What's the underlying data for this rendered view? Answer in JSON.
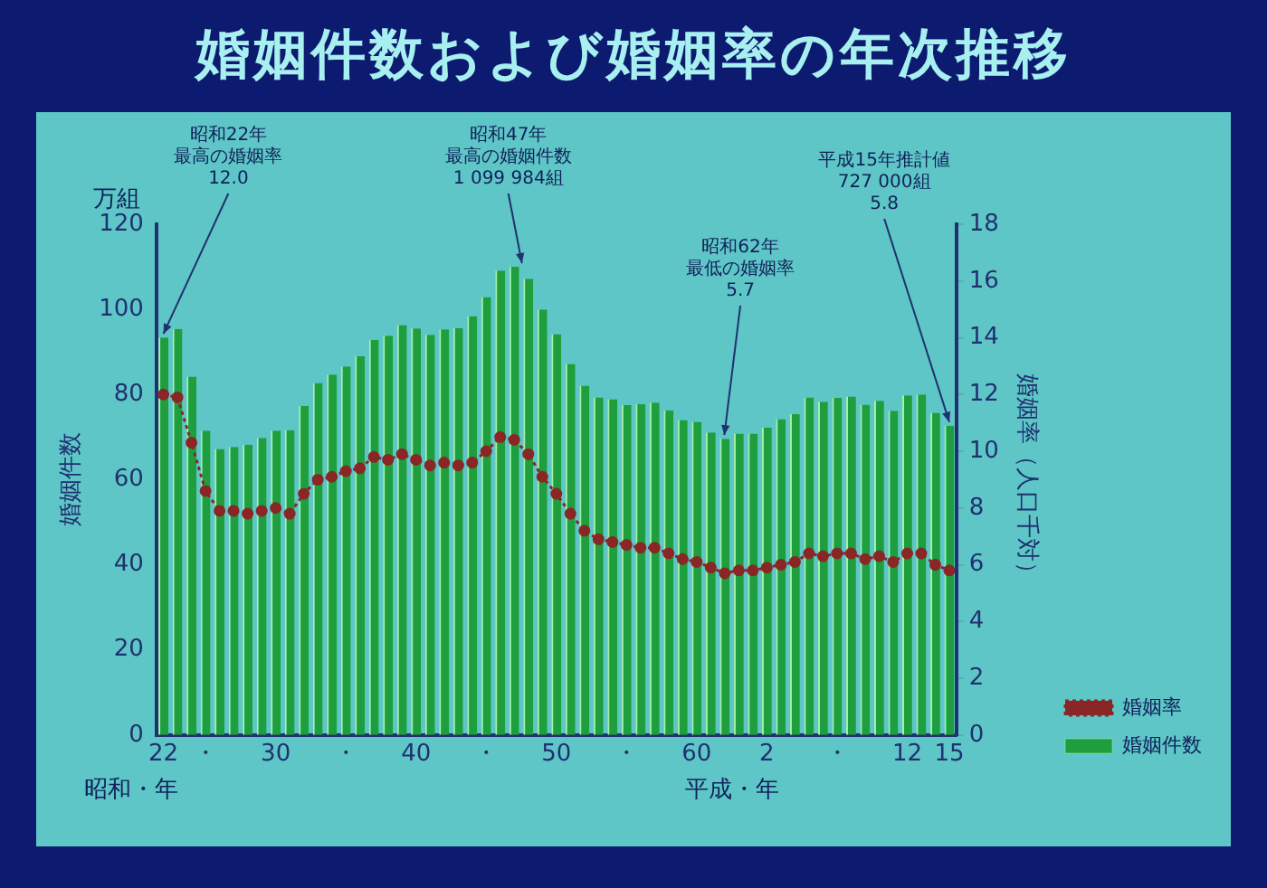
{
  "chart_data": {
    "type": "bar",
    "title": "婚姻件数および婚姻率の年次推移",
    "categories": [
      "22",
      null,
      null,
      "・",
      null,
      null,
      null,
      null,
      "30",
      null,
      null,
      null,
      null,
      "・",
      null,
      null,
      null,
      null,
      "40",
      null,
      null,
      null,
      null,
      "・",
      null,
      null,
      null,
      null,
      "50",
      null,
      null,
      null,
      null,
      "・",
      null,
      null,
      null,
      null,
      "60",
      null,
      null,
      null,
      null,
      "2",
      null,
      null,
      null,
      null,
      "・",
      null,
      null,
      null,
      null,
      "12",
      null,
      null,
      "15"
    ],
    "series": [
      {
        "name": "婚姻件数",
        "color": "#1e9e3c",
        "values": [
          93.4,
          95.4,
          84.2,
          71.5,
          67.2,
          67.7,
          68.2,
          69.8,
          71.5,
          71.6,
          77.3,
          82.7,
          84.7,
          86.6,
          89.0,
          92.8,
          93.8,
          96.3,
          95.5,
          94.0,
          95.3,
          95.6,
          98.4,
          102.9,
          109.1,
          110.0,
          107.2,
          100.0,
          94.2,
          87.2,
          82.1,
          79.3,
          78.9,
          77.5,
          77.7,
          78.1,
          76.3,
          74.0,
          73.6,
          71.1,
          69.6,
          70.8,
          70.8,
          72.2,
          74.2,
          75.4,
          79.3,
          78.3,
          79.2,
          79.5,
          77.6,
          78.5,
          76.2,
          79.8,
          80.0,
          75.7,
          72.7
        ]
      },
      {
        "name": "婚姻率",
        "type": "line",
        "axis": "y2",
        "color": "#8a2626",
        "values": [
          12.0,
          11.9,
          10.3,
          8.6,
          7.9,
          7.9,
          7.8,
          7.9,
          8.0,
          7.8,
          8.5,
          9.0,
          9.1,
          9.3,
          9.4,
          9.8,
          9.7,
          9.9,
          9.7,
          9.5,
          9.6,
          9.5,
          9.6,
          10.0,
          10.5,
          10.4,
          9.9,
          9.1,
          8.5,
          7.8,
          7.2,
          6.9,
          6.8,
          6.7,
          6.6,
          6.6,
          6.4,
          6.2,
          6.1,
          5.9,
          5.7,
          5.8,
          5.8,
          5.9,
          6.0,
          6.1,
          6.4,
          6.3,
          6.4,
          6.4,
          6.2,
          6.3,
          6.1,
          6.4,
          6.4,
          6.0,
          5.8
        ]
      }
    ],
    "ylabel": "婚姻件数",
    "y2label": "婚姻率（人口千対）",
    "ylim": [
      0,
      120
    ],
    "yticks": [
      0,
      20,
      40,
      60,
      80,
      100,
      120
    ],
    "y2lim": [
      0,
      18
    ],
    "y2ticks": [
      0,
      2,
      4,
      6,
      8,
      10,
      12,
      14,
      16,
      18
    ],
    "legend": "right",
    "marker": "circle",
    "line_style": "dotted",
    "annotations": [
      "万組",
      {
        "text": "昭和22年最高の婚姻率12.0",
        "x": "22",
        "y": 93.4
      },
      {
        "text": "昭和47年最高の婚姻件数1 099 984組",
        "y": 110.0
      },
      {
        "text": "昭和62年最低の婚姻率5.7",
        "y": 69.6
      },
      {
        "text": "平成15年推計値727 000組5.8",
        "x": "15",
        "y": 72.7
      },
      "昭和・年",
      "平成・年"
    ]
  }
}
